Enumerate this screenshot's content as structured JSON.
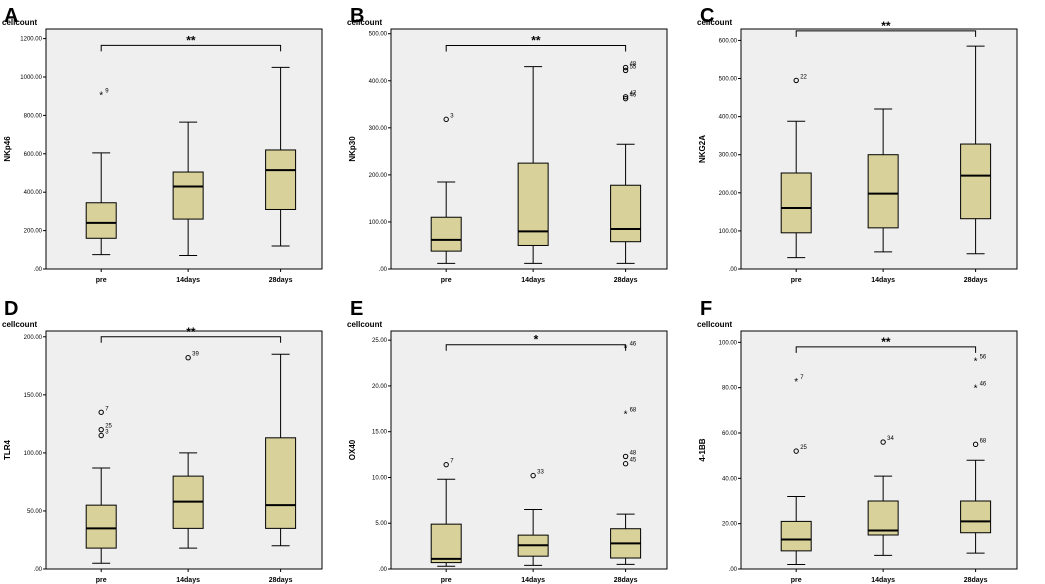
{
  "figure": {
    "y_title": "cellcount"
  },
  "colors": {
    "plot_bg": "#efefef",
    "box_fill": "#d8d19a",
    "line": "#000000"
  },
  "chart_data": [
    {
      "panel": "A",
      "type": "boxplot",
      "ylabel": "NKp46",
      "ylim": [
        0,
        1250
      ],
      "yticks": [
        0,
        200,
        400,
        600,
        800,
        1000,
        1200
      ],
      "ytick_labels": [
        ".00",
        "200.00",
        "400.00",
        "600.00",
        "800.00",
        "1000.00",
        "1200.00"
      ],
      "categories": [
        "pre",
        "14days",
        "28days"
      ],
      "boxes": [
        {
          "whisker_low": 75,
          "q1": 160,
          "median": 240,
          "q3": 345,
          "whisker_high": 605
        },
        {
          "whisker_low": 70,
          "q1": 260,
          "median": 430,
          "q3": 505,
          "whisker_high": 765
        },
        {
          "whisker_low": 120,
          "q1": 310,
          "median": 515,
          "q3": 620,
          "whisker_high": 1050
        }
      ],
      "outliers": [
        {
          "group": 0,
          "value": 910,
          "label": "9",
          "marker": "*"
        }
      ],
      "significance": "**",
      "sig_from": 0,
      "sig_to": 2,
      "sig_y": 1165
    },
    {
      "panel": "B",
      "type": "boxplot",
      "ylabel": "NKp30",
      "ylim": [
        0,
        510
      ],
      "yticks": [
        0,
        100,
        200,
        300,
        400,
        500
      ],
      "ytick_labels": [
        ".00",
        "100.00",
        "200.00",
        "300.00",
        "400.00",
        "500.00"
      ],
      "categories": [
        "pre",
        "14days",
        "28days"
      ],
      "boxes": [
        {
          "whisker_low": 12,
          "q1": 38,
          "median": 62,
          "q3": 110,
          "whisker_high": 185
        },
        {
          "whisker_low": 12,
          "q1": 50,
          "median": 80,
          "q3": 225,
          "whisker_high": 430
        },
        {
          "whisker_low": 12,
          "q1": 58,
          "median": 85,
          "q3": 178,
          "whisker_high": 265
        }
      ],
      "outliers": [
        {
          "group": 0,
          "value": 318,
          "label": "3",
          "marker": "o"
        },
        {
          "group": 2,
          "value": 428,
          "label": "48",
          "marker": "o"
        },
        {
          "group": 2,
          "value": 422,
          "label": "55",
          "marker": "o"
        },
        {
          "group": 2,
          "value": 366,
          "label": "47",
          "marker": "o"
        },
        {
          "group": 2,
          "value": 362,
          "label": "46",
          "marker": "o"
        }
      ],
      "significance": "**",
      "sig_from": 0,
      "sig_to": 2,
      "sig_y": 475
    },
    {
      "panel": "C",
      "type": "boxplot",
      "ylabel": "NKG2A",
      "ylim": [
        0,
        630
      ],
      "yticks": [
        0,
        100,
        200,
        300,
        400,
        500,
        600
      ],
      "ytick_labels": [
        ".00",
        "100.00",
        "200.00",
        "300.00",
        "400.00",
        "500.00",
        "600.00"
      ],
      "categories": [
        "pre",
        "14days",
        "28days"
      ],
      "boxes": [
        {
          "whisker_low": 30,
          "q1": 95,
          "median": 160,
          "q3": 252,
          "whisker_high": 388
        },
        {
          "whisker_low": 45,
          "q1": 108,
          "median": 198,
          "q3": 300,
          "whisker_high": 420
        },
        {
          "whisker_low": 40,
          "q1": 132,
          "median": 245,
          "q3": 328,
          "whisker_high": 585
        }
      ],
      "outliers": [
        {
          "group": 0,
          "value": 495,
          "label": "22",
          "marker": "o"
        }
      ],
      "significance": "**",
      "sig_from": 0,
      "sig_to": 2,
      "sig_y": 625
    },
    {
      "panel": "D",
      "type": "boxplot",
      "ylabel": "TLR4",
      "ylim": [
        0,
        205
      ],
      "yticks": [
        0,
        50,
        100,
        150,
        200
      ],
      "ytick_labels": [
        ".00",
        "50.00",
        "100.00",
        "150.00",
        "200.00"
      ],
      "categories": [
        "pre",
        "14days",
        "28days"
      ],
      "boxes": [
        {
          "whisker_low": 5,
          "q1": 18,
          "median": 35,
          "q3": 55,
          "whisker_high": 87
        },
        {
          "whisker_low": 18,
          "q1": 35,
          "median": 58,
          "q3": 80,
          "whisker_high": 100
        },
        {
          "whisker_low": 20,
          "q1": 35,
          "median": 55,
          "q3": 113,
          "whisker_high": 185
        }
      ],
      "outliers": [
        {
          "group": 0,
          "value": 135,
          "label": "7",
          "marker": "o"
        },
        {
          "group": 0,
          "value": 120,
          "label": "25",
          "marker": "o"
        },
        {
          "group": 0,
          "value": 115,
          "label": "3",
          "marker": "o"
        },
        {
          "group": 1,
          "value": 182,
          "label": "39",
          "marker": "o"
        }
      ],
      "significance": "**",
      "sig_from": 0,
      "sig_to": 2,
      "sig_y": 200
    },
    {
      "panel": "E",
      "type": "boxplot",
      "ylabel": "OX40",
      "ylim": [
        0,
        26
      ],
      "yticks": [
        0,
        5,
        10,
        15,
        20,
        25
      ],
      "ytick_labels": [
        ".00",
        "5.00",
        "10.00",
        "15.00",
        "20.00",
        "25.00"
      ],
      "categories": [
        "pre",
        "14days",
        "28days"
      ],
      "boxes": [
        {
          "whisker_low": 0.3,
          "q1": 0.7,
          "median": 1.1,
          "q3": 4.9,
          "whisker_high": 9.8
        },
        {
          "whisker_low": 0.4,
          "q1": 1.4,
          "median": 2.6,
          "q3": 3.7,
          "whisker_high": 6.5
        },
        {
          "whisker_low": 0.5,
          "q1": 1.2,
          "median": 2.8,
          "q3": 4.4,
          "whisker_high": 6.0
        }
      ],
      "outliers": [
        {
          "group": 0,
          "value": 11.4,
          "label": "7",
          "marker": "o"
        },
        {
          "group": 1,
          "value": 10.2,
          "label": "33",
          "marker": "o"
        },
        {
          "group": 2,
          "value": 24.2,
          "label": "46",
          "marker": "*"
        },
        {
          "group": 2,
          "value": 17.0,
          "label": "68",
          "marker": "*"
        },
        {
          "group": 2,
          "value": 12.3,
          "label": "48",
          "marker": "o"
        },
        {
          "group": 2,
          "value": 11.5,
          "label": "45",
          "marker": "o"
        }
      ],
      "significance": "*",
      "sig_from": 0,
      "sig_to": 2,
      "sig_y": 24.5
    },
    {
      "panel": "F",
      "type": "boxplot",
      "ylabel": "4-1BB",
      "ylim": [
        0,
        105
      ],
      "yticks": [
        0,
        20,
        40,
        60,
        80,
        100
      ],
      "ytick_labels": [
        ".00",
        "20.00",
        "40.00",
        "60.00",
        "80.00",
        "100.00"
      ],
      "categories": [
        "pre",
        "14days",
        "28days"
      ],
      "boxes": [
        {
          "whisker_low": 2,
          "q1": 8,
          "median": 13,
          "q3": 21,
          "whisker_high": 32
        },
        {
          "whisker_low": 6,
          "q1": 15,
          "median": 17,
          "q3": 30,
          "whisker_high": 41
        },
        {
          "whisker_low": 7,
          "q1": 16,
          "median": 21,
          "q3": 30,
          "whisker_high": 48
        }
      ],
      "outliers": [
        {
          "group": 0,
          "value": 83,
          "label": "7",
          "marker": "*"
        },
        {
          "group": 0,
          "value": 52,
          "label": "25",
          "marker": "o"
        },
        {
          "group": 1,
          "value": 56,
          "label": "34",
          "marker": "o"
        },
        {
          "group": 2,
          "value": 92,
          "label": "56",
          "marker": "*"
        },
        {
          "group": 2,
          "value": 80,
          "label": "46",
          "marker": "*"
        },
        {
          "group": 2,
          "value": 55,
          "label": "68",
          "marker": "o"
        }
      ],
      "significance": "**",
      "sig_from": 0,
      "sig_to": 2,
      "sig_y": 98
    }
  ]
}
